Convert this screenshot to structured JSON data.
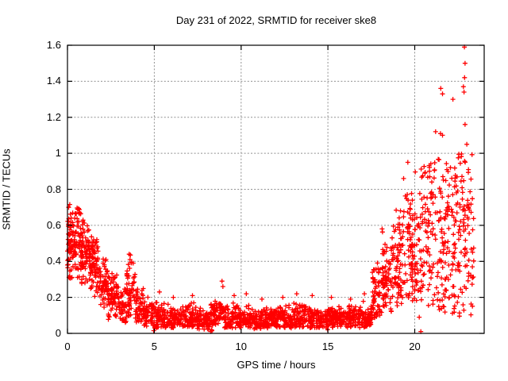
{
  "chart_data": {
    "type": "scatter",
    "title": "Day 231 of 2022, SRMTID for receiver ske8",
    "xlabel": "GPS time / hours",
    "ylabel": "SRMTID / TECUs",
    "xlim": [
      0,
      24
    ],
    "ylim": [
      0,
      1.6
    ],
    "grid": "dashed both axes",
    "legend": "none",
    "marker": {
      "shape": "plus",
      "color": "#ff0000",
      "size": 7
    },
    "grid_color": "#909090",
    "axis_color": "#000000",
    "x_ticks": [
      {
        "value": 0,
        "label": "0"
      },
      {
        "value": 5,
        "label": "5"
      },
      {
        "value": 10,
        "label": "10"
      },
      {
        "value": 15,
        "label": "15"
      },
      {
        "value": 20,
        "label": "20"
      }
    ],
    "y_ticks": [
      {
        "value": 0.0,
        "label": "0"
      },
      {
        "value": 0.2,
        "label": "0.2"
      },
      {
        "value": 0.4,
        "label": "0.4"
      },
      {
        "value": 0.6,
        "label": "0.6"
      },
      {
        "value": 0.8,
        "label": "0.8"
      },
      {
        "value": 1.0,
        "label": "1"
      },
      {
        "value": 1.2,
        "label": "1.2"
      },
      {
        "value": 1.4,
        "label": "1.4"
      },
      {
        "value": 1.6,
        "label": "1.6"
      }
    ],
    "seed": 231,
    "point_bins_format": [
      "x_start",
      "x_end",
      "count",
      "y_min",
      "y_max",
      "y_center"
    ],
    "point_bins": [
      [
        0.0,
        0.3,
        55,
        0.3,
        0.73,
        0.5
      ],
      [
        0.3,
        0.8,
        75,
        0.3,
        0.7,
        0.52
      ],
      [
        0.8,
        1.3,
        75,
        0.27,
        0.63,
        0.45
      ],
      [
        1.3,
        1.8,
        70,
        0.2,
        0.56,
        0.38
      ],
      [
        1.8,
        2.3,
        60,
        0.12,
        0.42,
        0.27
      ],
      [
        2.3,
        2.9,
        70,
        0.07,
        0.34,
        0.22
      ],
      [
        2.9,
        3.4,
        50,
        0.06,
        0.27,
        0.15
      ],
      [
        3.4,
        3.9,
        55,
        0.09,
        0.45,
        0.24
      ],
      [
        3.9,
        4.4,
        50,
        0.06,
        0.28,
        0.14
      ],
      [
        4.4,
        5.0,
        60,
        0.04,
        0.22,
        0.11
      ],
      [
        5.0,
        5.8,
        75,
        0.03,
        0.18,
        0.09
      ],
      [
        5.8,
        6.6,
        75,
        0.03,
        0.15,
        0.08
      ],
      [
        6.6,
        7.4,
        75,
        0.03,
        0.17,
        0.09
      ],
      [
        7.4,
        8.2,
        75,
        0.02,
        0.14,
        0.07
      ],
      [
        8.2,
        9.0,
        75,
        0.03,
        0.19,
        0.1
      ],
      [
        9.0,
        9.8,
        75,
        0.03,
        0.18,
        0.09
      ],
      [
        9.8,
        10.6,
        75,
        0.03,
        0.16,
        0.08
      ],
      [
        10.6,
        11.4,
        75,
        0.02,
        0.14,
        0.07
      ],
      [
        11.4,
        12.2,
        75,
        0.03,
        0.15,
        0.08
      ],
      [
        12.2,
        13.0,
        75,
        0.03,
        0.16,
        0.08
      ],
      [
        13.0,
        13.8,
        75,
        0.03,
        0.17,
        0.09
      ],
      [
        13.8,
        14.6,
        75,
        0.03,
        0.16,
        0.08
      ],
      [
        14.6,
        15.4,
        75,
        0.02,
        0.14,
        0.08
      ],
      [
        15.4,
        16.2,
        75,
        0.03,
        0.15,
        0.08
      ],
      [
        16.2,
        17.0,
        75,
        0.03,
        0.16,
        0.08
      ],
      [
        17.0,
        17.55,
        55,
        0.03,
        0.18,
        0.09
      ],
      [
        17.55,
        18.1,
        60,
        0.08,
        0.47,
        0.22
      ],
      [
        18.1,
        18.7,
        70,
        0.12,
        0.6,
        0.32
      ],
      [
        18.7,
        19.3,
        70,
        0.15,
        0.72,
        0.4
      ],
      [
        19.3,
        19.9,
        70,
        0.18,
        0.86,
        0.48
      ],
      [
        19.9,
        20.5,
        60,
        0.15,
        0.92,
        0.5
      ],
      [
        20.5,
        21.1,
        55,
        0.12,
        1.0,
        0.55
      ],
      [
        21.1,
        21.7,
        55,
        0.1,
        1.12,
        0.55
      ],
      [
        21.7,
        22.3,
        65,
        0.08,
        1.05,
        0.55
      ],
      [
        22.3,
        22.9,
        65,
        0.08,
        1.02,
        0.55
      ],
      [
        22.9,
        23.4,
        45,
        0.1,
        1.0,
        0.5
      ]
    ],
    "explicit_points": [
      [
        3.55,
        0.44
      ],
      [
        3.6,
        0.41
      ],
      [
        4.97,
        0.015
      ],
      [
        5.3,
        0.23
      ],
      [
        6.1,
        0.2
      ],
      [
        7.2,
        0.21
      ],
      [
        8.25,
        0.01
      ],
      [
        8.3,
        0.02
      ],
      [
        8.32,
        0.015
      ],
      [
        8.9,
        0.29
      ],
      [
        8.95,
        0.26
      ],
      [
        9.6,
        0.21
      ],
      [
        10.3,
        0.22
      ],
      [
        11.2,
        0.19
      ],
      [
        12.4,
        0.2
      ],
      [
        13.2,
        0.22
      ],
      [
        14.1,
        0.21
      ],
      [
        15.2,
        0.2
      ],
      [
        16.3,
        0.19
      ],
      [
        17.1,
        0.22
      ],
      [
        19.6,
        0.95
      ],
      [
        20.26,
        0.09
      ],
      [
        20.35,
        0.01
      ],
      [
        21.2,
        1.12
      ],
      [
        21.5,
        1.36
      ],
      [
        21.6,
        1.33
      ],
      [
        21.6,
        1.1
      ],
      [
        22.2,
        1.3
      ],
      [
        22.8,
        1.37
      ],
      [
        22.84,
        1.34
      ],
      [
        22.86,
        1.59
      ],
      [
        22.9,
        1.5
      ],
      [
        22.87,
        1.42
      ],
      [
        22.9,
        1.16
      ],
      [
        23.0,
        1.05
      ]
    ]
  }
}
